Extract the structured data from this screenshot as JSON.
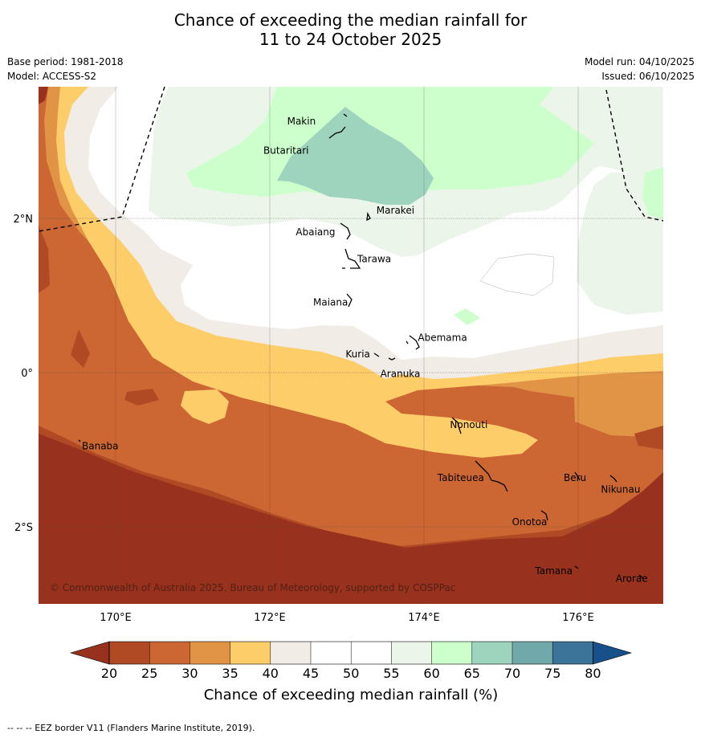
{
  "title_line1": "Chance of exceeding the median rainfall for",
  "title_line2": "11 to 24 October 2025",
  "base_period": "Base period: 1981-2018",
  "model": "Model: ACCESS-S2",
  "model_run": "Model run: 04/10/2025",
  "issued": "Issued: 06/10/2025",
  "copyright": "© Commonwealth of Australia 2025, Bureau of Meteorology, supported by COSPPac",
  "footer": "--  --  -- EEZ border V11 (Flanders Marine Institute, 2019).",
  "axes": {
    "x_ticks": [
      {
        "lon": 170,
        "label": "170°E"
      },
      {
        "lon": 172,
        "label": "172°E"
      },
      {
        "lon": 174,
        "label": "174°E"
      },
      {
        "lon": 176,
        "label": "176°E"
      }
    ],
    "y_ticks": [
      {
        "lat": 2,
        "label": "2°N"
      },
      {
        "lat": 0,
        "label": "0°"
      },
      {
        "lat": -2,
        "label": "2°S"
      }
    ]
  },
  "places": [
    {
      "name": "Makin",
      "lon": 172.6,
      "lat": 3.2
    },
    {
      "name": "Butaritari",
      "lon": 172.5,
      "lat": 2.9
    },
    {
      "name": "Marakei",
      "lon": 173.3,
      "lat": 2.0
    },
    {
      "name": "Abaiang",
      "lon": 172.9,
      "lat": 1.8
    },
    {
      "name": "Tarawa",
      "lon": 173.0,
      "lat": 1.4
    },
    {
      "name": "Maiana",
      "lon": 173.0,
      "lat": 0.9
    },
    {
      "name": "Abemama",
      "lon": 173.9,
      "lat": 0.4
    },
    {
      "name": "Kuria",
      "lon": 173.4,
      "lat": 0.2
    },
    {
      "name": "Aranuka",
      "lon": 173.6,
      "lat": 0.1
    },
    {
      "name": "Nonouti",
      "lon": 174.4,
      "lat": -0.7
    },
    {
      "name": "Banaba",
      "lon": 169.5,
      "lat": -0.9
    },
    {
      "name": "Beru",
      "lon": 176.0,
      "lat": -1.3
    },
    {
      "name": "Tabiteuea",
      "lon": 174.8,
      "lat": -1.3
    },
    {
      "name": "Nikunau",
      "lon": 176.4,
      "lat": -1.4
    },
    {
      "name": "Onotoa",
      "lon": 175.6,
      "lat": -1.8
    },
    {
      "name": "Tamana",
      "lon": 175.9,
      "lat": -2.5
    },
    {
      "name": "Arorae",
      "lon": 176.8,
      "lat": -2.6
    }
  ],
  "colorbar": {
    "title": "Chance of exceeding median rainfall (%)",
    "labels": [
      "20",
      "25",
      "30",
      "35",
      "40",
      "45",
      "50",
      "55",
      "60",
      "65",
      "70",
      "75",
      "80"
    ],
    "colors": [
      "#b04a25",
      "#cc6633",
      "#e19446",
      "#fdcd6a",
      "#f1ece6",
      "#ffffff",
      "#ffffff",
      "#ecf5ea",
      "#ccffcc",
      "#9ed3bd",
      "#71a8aa",
      "#3c7399"
    ],
    "under_color": "#98321e",
    "over_color": "#17508a"
  }
}
